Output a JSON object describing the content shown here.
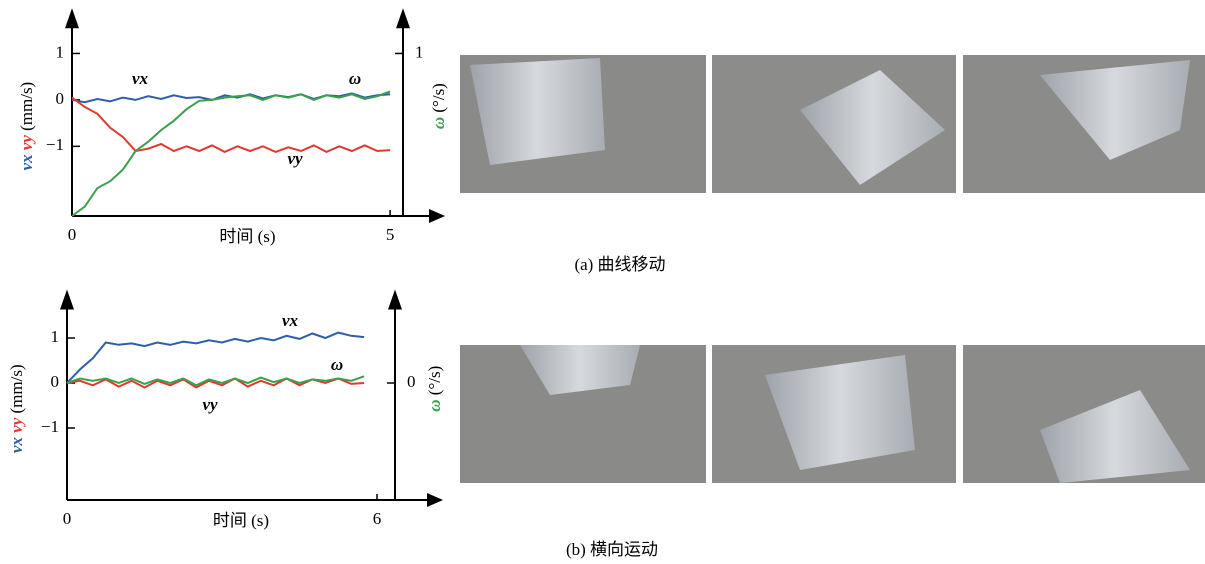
{
  "chart_data": [
    {
      "type": "line",
      "x_label": "时间 (s)",
      "y_label": "(mm/s)",
      "y2_label": "(°/s)",
      "x": [
        0,
        0.2,
        0.4,
        0.6,
        0.8,
        1.0,
        1.2,
        1.4,
        1.6,
        1.8,
        2.0,
        2.2,
        2.4,
        2.6,
        2.8,
        3.0,
        3.2,
        3.4,
        3.6,
        3.8,
        4.0,
        4.2,
        4.4,
        4.6,
        4.8,
        5.0
      ],
      "series": [
        {
          "name": "vx",
          "color": "#2e5fa8",
          "values": [
            0,
            -0.05,
            0.02,
            -0.03,
            0.05,
            0.0,
            0.08,
            0.02,
            0.1,
            0.04,
            0.06,
            0.0,
            0.1,
            0.05,
            0.12,
            0.03,
            0.1,
            0.06,
            0.12,
            0.02,
            0.1,
            0.08,
            0.14,
            0.05,
            0.1,
            0.12
          ]
        },
        {
          "name": "vy",
          "color": "#e03a2f",
          "values": [
            0.05,
            -0.15,
            -0.3,
            -0.6,
            -0.8,
            -1.1,
            -1.05,
            -0.95,
            -1.1,
            -1.0,
            -1.1,
            -0.98,
            -1.12,
            -1.0,
            -1.1,
            -1.0,
            -1.12,
            -1.02,
            -1.1,
            -0.98,
            -1.12,
            -1.0,
            -1.1,
            -0.98,
            -1.1,
            -1.08
          ]
        },
        {
          "name": "ω",
          "color": "#3aa04a",
          "axis": "y2",
          "values": [
            -2.5,
            -2.3,
            -1.9,
            -1.75,
            -1.5,
            -1.1,
            -0.9,
            -0.65,
            -0.45,
            -0.2,
            -0.02,
            0.0,
            0.05,
            0.08,
            0.1,
            0.0,
            0.1,
            0.05,
            0.12,
            0.0,
            0.1,
            0.05,
            0.12,
            0.02,
            0.08,
            0.18
          ]
        }
      ],
      "xlim": [
        0,
        5.8
      ],
      "ylim": [
        -2.5,
        1.8
      ],
      "y2lim": [
        -2.5,
        1.8
      ],
      "xticks": [
        0,
        5
      ],
      "yticks": [
        {
          "value": -1,
          "label": "−1"
        },
        0,
        1
      ],
      "y2ticks": [
        1
      ]
    },
    {
      "type": "line",
      "x_label": "时间 (s)",
      "y_label": "(mm/s)",
      "y2_label": "(°/s)",
      "x": [
        0,
        0.25,
        0.5,
        0.75,
        1.0,
        1.25,
        1.5,
        1.75,
        2.0,
        2.25,
        2.5,
        2.75,
        3.0,
        3.25,
        3.5,
        3.75,
        4.0,
        4.25,
        4.5,
        4.75,
        5.0,
        5.25,
        5.5,
        5.75
      ],
      "series": [
        {
          "name": "vx",
          "color": "#2e5fa8",
          "values": [
            0,
            0.3,
            0.55,
            0.9,
            0.85,
            0.88,
            0.82,
            0.9,
            0.85,
            0.92,
            0.88,
            0.95,
            0.9,
            0.98,
            0.92,
            1.0,
            0.95,
            1.05,
            0.98,
            1.1,
            1.0,
            1.12,
            1.05,
            1.02
          ]
        },
        {
          "name": "vy",
          "color": "#e03a2f",
          "values": [
            0,
            0.05,
            -0.05,
            0.08,
            -0.08,
            0.05,
            -0.1,
            0.05,
            -0.05,
            0.08,
            -0.1,
            0.05,
            -0.05,
            0.1,
            -0.08,
            0.05,
            -0.05,
            0.1,
            -0.05,
            0.08,
            0.0,
            0.1,
            -0.02,
            0.0
          ]
        },
        {
          "name": "ω",
          "color": "#3aa04a",
          "axis": "y2",
          "values": [
            0,
            0.1,
            0.05,
            0.1,
            0.0,
            0.1,
            -0.02,
            0.08,
            0.0,
            0.1,
            -0.05,
            0.08,
            0.0,
            0.1,
            0.0,
            0.12,
            0.02,
            0.1,
            0.0,
            0.08,
            0.05,
            0.1,
            0.05,
            0.15
          ]
        }
      ],
      "xlim": [
        0,
        7.2
      ],
      "ylim": [
        -2.6,
        1.9
      ],
      "y2lim": [
        -2.6,
        1.9
      ],
      "xticks": [
        0,
        6
      ],
      "yticks": [
        {
          "value": -1,
          "label": "−1"
        },
        0,
        1
      ],
      "y2ticks": [
        0
      ]
    }
  ],
  "captions": [
    "(a) 曲线移动",
    "(b) 横向运动"
  ]
}
